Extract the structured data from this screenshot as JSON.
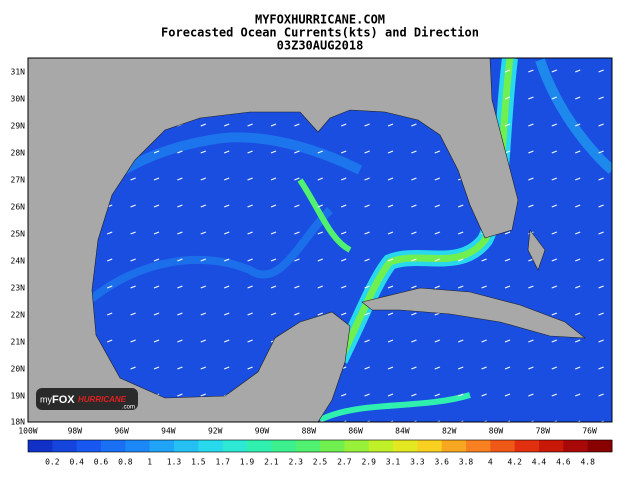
{
  "header": {
    "site": "MYFOXHURRICANE.COM",
    "title": "Forecasted Ocean Currents(kts) and Direction",
    "time": "03Z30AUG2018"
  },
  "latitudes": [
    "31N",
    "30N",
    "29N",
    "28N",
    "27N",
    "26N",
    "25N",
    "24N",
    "23N",
    "22N",
    "21N",
    "20N",
    "19N",
    "18N"
  ],
  "longitudes": [
    "100W",
    "98W",
    "96W",
    "94W",
    "92W",
    "90W",
    "88W",
    "86W",
    "84W",
    "82W",
    "80W",
    "78W",
    "76W"
  ],
  "colorbar": {
    "labels": [
      "0.2",
      "0.4",
      "0.6",
      "0.8",
      "1",
      "1.3",
      "1.5",
      "1.7",
      "1.9",
      "2.1",
      "2.3",
      "2.5",
      "2.7",
      "2.9",
      "3.1",
      "3.3",
      "3.6",
      "3.8",
      "4",
      "4.2",
      "4.4",
      "4.6",
      "4.8"
    ],
    "colors": [
      "#1030c8",
      "#1444dc",
      "#1858f0",
      "#1a70f4",
      "#1c88f8",
      "#20a4f8",
      "#24c0f4",
      "#28d8ec",
      "#2ce8d4",
      "#30f0b0",
      "#3cf090",
      "#50f070",
      "#70f050",
      "#98f038",
      "#c0f028",
      "#e4e820",
      "#f8d020",
      "#f8a820",
      "#f88020",
      "#f05818",
      "#e03010",
      "#c81808",
      "#a80808",
      "#880000"
    ]
  },
  "logo": {
    "prefix": "my",
    "brand": "FOX",
    "name": "HURRICANE",
    "suffix": ".com"
  }
}
